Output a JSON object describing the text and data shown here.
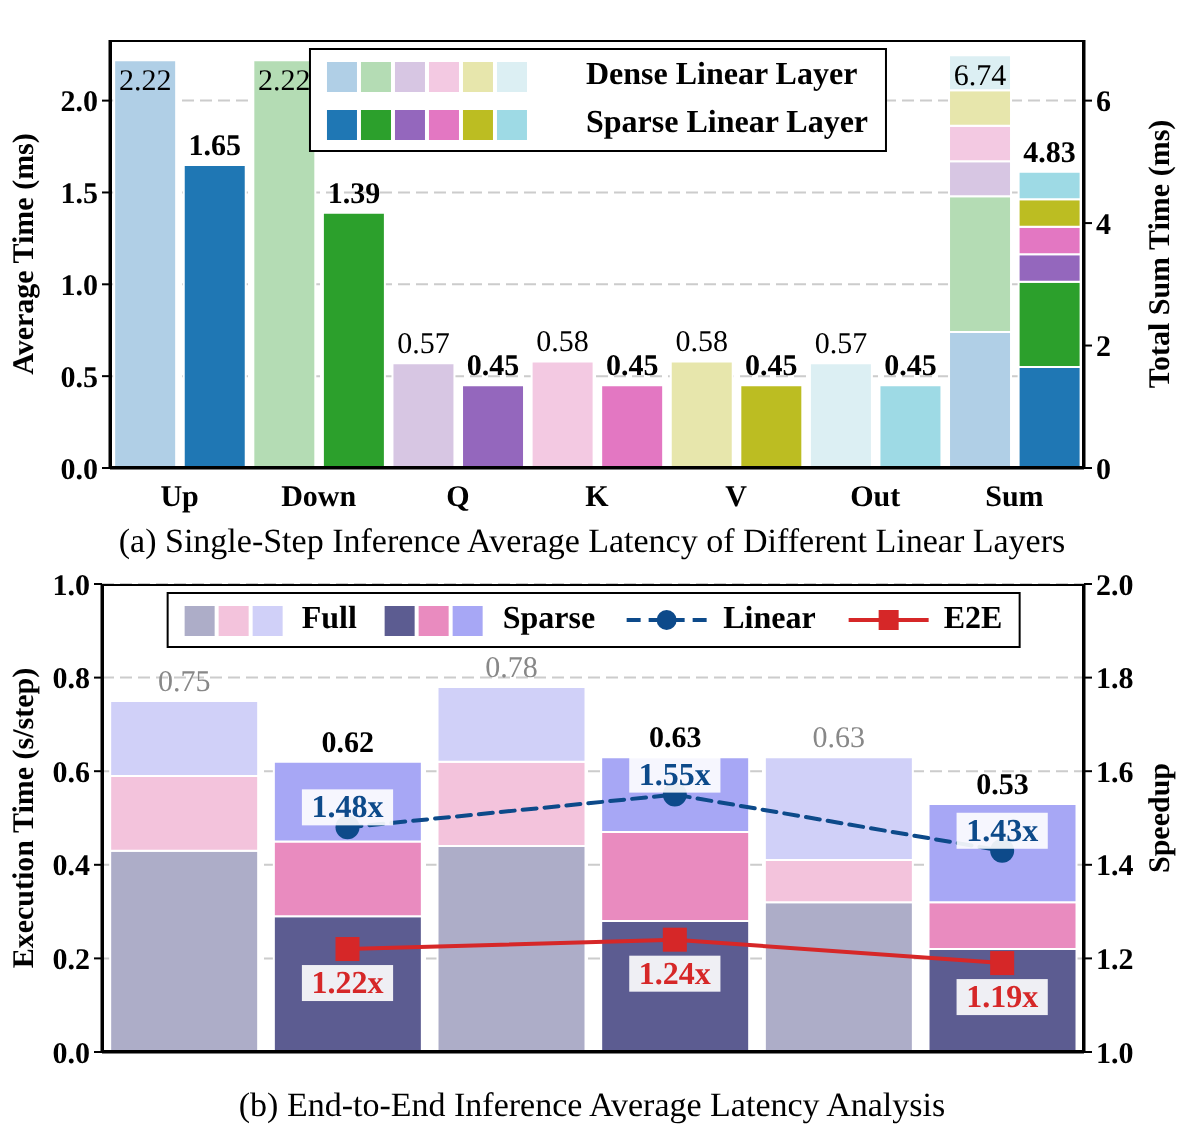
{
  "chart_data": [
    {
      "type": "bar",
      "title": "(a) Single-Step Inference Average Latency of Different Linear Layers",
      "ylabel": "Average Time (ms)",
      "y2label": "Total Sum Time (ms)",
      "categories": [
        "Up",
        null,
        "Down",
        null,
        "Q",
        null,
        "K",
        null,
        "V",
        null,
        "Out",
        null,
        "Sum",
        null
      ],
      "stacked": true,
      "ylim": [
        0,
        2.33
      ],
      "yticks": [
        {
          "value": 0,
          "label": "0.0"
        },
        {
          "value": 0.5,
          "label": "0.5"
        },
        {
          "value": 1,
          "label": "1.0"
        },
        {
          "value": 1.5,
          "label": "1.5"
        },
        {
          "value": 2,
          "label": "2.0"
        }
      ],
      "y2lim": [
        0,
        6.99
      ],
      "y2ticks": [
        0,
        2,
        4,
        6
      ],
      "grid": "y",
      "legend": "top",
      "annotations": [
        "6.74",
        "4.83"
      ],
      "series": [
        {
          "name": "Dense Linear Layer",
          "colors": [
            "#b0cfe6",
            null,
            "#b4dcb4",
            null,
            "#d7c6e3",
            null,
            "#f3c9e2",
            null,
            "#e7e6ac",
            null,
            "#dceff3",
            null,
            null,
            null
          ],
          "values": [
            2.22,
            null,
            2.22,
            null,
            0.57,
            null,
            0.58,
            null,
            0.58,
            null,
            0.57,
            null,
            null,
            null
          ],
          "value_labels": [
            "2.22",
            null,
            "2.22",
            null,
            "0.57",
            null,
            "0.58",
            null,
            "0.58",
            null,
            "0.57",
            null,
            null,
            null
          ]
        },
        {
          "name": "Sparse Linear Layer",
          "colors": [
            null,
            "#1f77b4",
            null,
            "#2ca02c",
            null,
            "#9467bd",
            null,
            "#e377c2",
            null,
            "#bcbd22",
            null,
            "#9edae5",
            null,
            null
          ],
          "values": [
            null,
            1.65,
            null,
            1.39,
            null,
            0.45,
            null,
            0.45,
            null,
            0.45,
            null,
            0.45,
            null,
            null
          ],
          "value_labels": [
            null,
            "1.65",
            null,
            "1.39",
            null,
            "0.45",
            null,
            "0.45",
            null,
            "0.45",
            null,
            "0.45",
            null,
            null
          ]
        },
        {
          "axis": "y2",
          "color": "#b0cfe6",
          "values": [
            null,
            null,
            null,
            null,
            null,
            null,
            null,
            null,
            null,
            null,
            null,
            null,
            2.22,
            null
          ]
        },
        {
          "axis": "y2",
          "color": "#b4dcb4",
          "values": [
            null,
            null,
            null,
            null,
            null,
            null,
            null,
            null,
            null,
            null,
            null,
            null,
            2.22,
            null
          ]
        },
        {
          "axis": "y2",
          "color": "#d7c6e3",
          "values": [
            null,
            null,
            null,
            null,
            null,
            null,
            null,
            null,
            null,
            null,
            null,
            null,
            0.57,
            null
          ]
        },
        {
          "axis": "y2",
          "color": "#f3c9e2",
          "values": [
            null,
            null,
            null,
            null,
            null,
            null,
            null,
            null,
            null,
            null,
            null,
            null,
            0.58,
            null
          ]
        },
        {
          "axis": "y2",
          "color": "#e7e6ac",
          "values": [
            null,
            null,
            null,
            null,
            null,
            null,
            null,
            null,
            null,
            null,
            null,
            null,
            0.58,
            null
          ]
        },
        {
          "axis": "y2",
          "color": "#dceff3",
          "values": [
            null,
            null,
            null,
            null,
            null,
            null,
            null,
            null,
            null,
            null,
            null,
            null,
            0.57,
            null
          ]
        },
        {
          "axis": "y2",
          "color": "#1f77b4",
          "values": [
            null,
            null,
            null,
            null,
            null,
            null,
            null,
            null,
            null,
            null,
            null,
            null,
            null,
            1.65
          ]
        },
        {
          "axis": "y2",
          "color": "#2ca02c",
          "values": [
            null,
            null,
            null,
            null,
            null,
            null,
            null,
            null,
            null,
            null,
            null,
            null,
            null,
            1.39
          ]
        },
        {
          "axis": "y2",
          "color": "#9467bd",
          "values": [
            null,
            null,
            null,
            null,
            null,
            null,
            null,
            null,
            null,
            null,
            null,
            null,
            null,
            0.45
          ]
        },
        {
          "axis": "y2",
          "color": "#e377c2",
          "values": [
            null,
            null,
            null,
            null,
            null,
            null,
            null,
            null,
            null,
            null,
            null,
            null,
            null,
            0.45
          ]
        },
        {
          "axis": "y2",
          "color": "#bcbd22",
          "values": [
            null,
            null,
            null,
            null,
            null,
            null,
            null,
            null,
            null,
            null,
            null,
            null,
            null,
            0.45
          ]
        },
        {
          "axis": "y2",
          "color": "#9edae5",
          "values": [
            null,
            null,
            null,
            null,
            null,
            null,
            null,
            null,
            null,
            null,
            null,
            null,
            null,
            0.45
          ]
        }
      ]
    },
    {
      "type": "bar",
      "title": "(b) End-to-End Inference Average Latency Analysis",
      "ylabel": "Execution Time (s/step)",
      "y2label": "Speedup",
      "categories": [
        null,
        null,
        null,
        null,
        null,
        null
      ],
      "stacked": true,
      "ylim": [
        0,
        1
      ],
      "yticks": [
        {
          "value": 0,
          "label": "0.0"
        },
        {
          "value": 0.2,
          "label": "0.2"
        },
        {
          "value": 0.4,
          "label": "0.4"
        },
        {
          "value": 0.6,
          "label": "0.6"
        },
        {
          "value": 0.8,
          "label": "0.8"
        },
        {
          "value": 1,
          "label": "1.0"
        }
      ],
      "y2lim": [
        1,
        2
      ],
      "y2ticks": [
        {
          "value": 1,
          "label": "1.0"
        },
        {
          "value": 1.2,
          "label": "1.2"
        },
        {
          "value": 1.4,
          "label": "1.4"
        },
        {
          "value": 1.6,
          "label": "1.6"
        },
        {
          "value": 1.8,
          "label": "1.8"
        },
        {
          "value": 2,
          "label": "2.0"
        }
      ],
      "grid": "y",
      "legend": "top",
      "totals": [
        "0.75",
        "0.62",
        "0.78",
        "0.63",
        "0.63",
        "0.53"
      ],
      "series": [
        {
          "color": "#adadc8",
          "values": [
            0.43,
            null,
            0.44,
            null,
            0.32,
            null
          ]
        },
        {
          "color": "#f3c3dc",
          "values": [
            0.16,
            null,
            0.18,
            null,
            0.09,
            null
          ]
        },
        {
          "name": "Full",
          "color": "#d0d0f8",
          "values": [
            0.16,
            null,
            0.16,
            null,
            0.22,
            null
          ]
        },
        {
          "color": "#5c5c91",
          "values": [
            null,
            0.29,
            null,
            0.28,
            null,
            0.22
          ]
        },
        {
          "color": "#e98bbf",
          "values": [
            null,
            0.16,
            null,
            0.19,
            null,
            0.1
          ]
        },
        {
          "name": "Sparse",
          "color": "#a7a7f5",
          "values": [
            null,
            0.17,
            null,
            0.16,
            null,
            0.21
          ]
        },
        {
          "name": "Linear",
          "type": "line",
          "axis": "y2",
          "color": "#0d4a8a",
          "marker": "circle",
          "line_style": "dashed",
          "values": [
            null,
            1.48,
            null,
            1.55,
            null,
            1.43
          ],
          "value_labels": [
            null,
            "1.48x",
            null,
            "1.55x",
            null,
            "1.43x"
          ]
        },
        {
          "name": "E2E",
          "type": "line",
          "axis": "y2",
          "color": "#d62728",
          "marker": "square",
          "line_style": "solid",
          "values": [
            null,
            1.22,
            null,
            1.24,
            null,
            1.19
          ],
          "value_labels": [
            null,
            "1.22x",
            null,
            "1.24x",
            null,
            "1.19x"
          ]
        }
      ]
    }
  ]
}
